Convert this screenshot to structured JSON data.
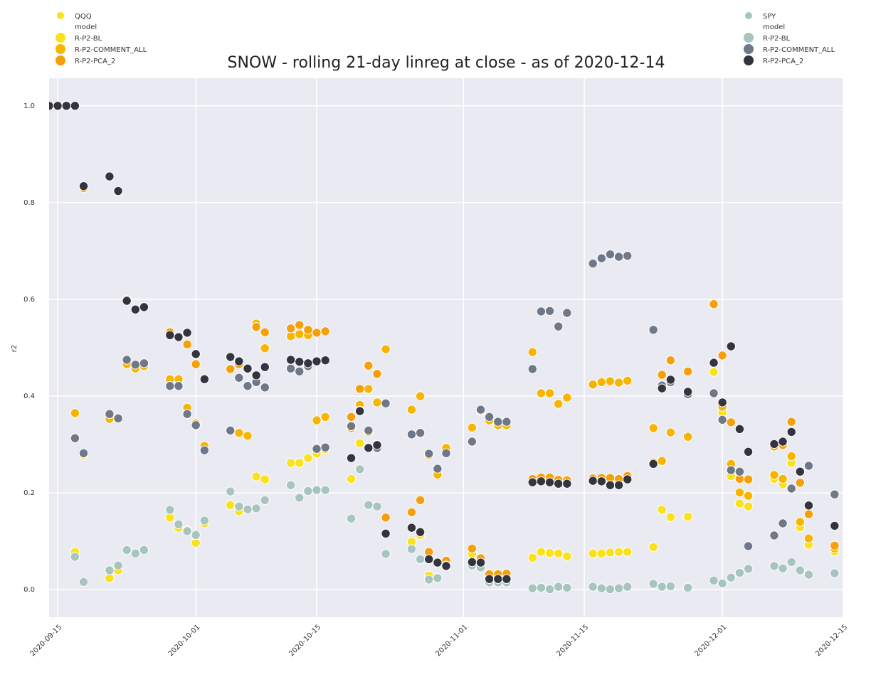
{
  "chart_data": {
    "type": "scatter",
    "title": "SNOW - rolling 21-day linreg at close - as of 2020-12-14",
    "ylabel": "r2",
    "grid": true,
    "x": [
      "2020-09-14",
      "2020-09-15",
      "2020-09-16",
      "2020-09-17",
      "2020-09-18",
      "2020-09-21",
      "2020-09-22",
      "2020-09-23",
      "2020-09-24",
      "2020-09-25",
      "2020-09-28",
      "2020-09-29",
      "2020-09-30",
      "2020-10-01",
      "2020-10-02",
      "2020-10-05",
      "2020-10-06",
      "2020-10-07",
      "2020-10-08",
      "2020-10-09",
      "2020-10-12",
      "2020-10-13",
      "2020-10-14",
      "2020-10-15",
      "2020-10-16",
      "2020-10-19",
      "2020-10-20",
      "2020-10-21",
      "2020-10-22",
      "2020-10-23",
      "2020-10-26",
      "2020-10-27",
      "2020-10-28",
      "2020-10-29",
      "2020-10-30",
      "2020-11-02",
      "2020-11-03",
      "2020-11-04",
      "2020-11-05",
      "2020-11-06",
      "2020-11-09",
      "2020-11-10",
      "2020-11-11",
      "2020-11-12",
      "2020-11-13",
      "2020-11-16",
      "2020-11-17",
      "2020-11-18",
      "2020-11-19",
      "2020-11-20",
      "2020-11-23",
      "2020-11-24",
      "2020-11-25",
      "2020-11-27",
      "2020-11-30",
      "2020-12-01",
      "2020-12-02",
      "2020-12-03",
      "2020-12-04",
      "2020-12-07",
      "2020-12-08",
      "2020-12-09",
      "2020-12-10",
      "2020-12-11",
      "2020-12-14"
    ],
    "xlim": [
      "2020-09-14",
      "2020-12-15"
    ],
    "xticks": [
      "2020-09-15",
      "2020-10-01",
      "2020-10-15",
      "2020-11-01",
      "2020-11-15",
      "2020-12-01",
      "2020-12-15"
    ],
    "ylim": [
      -0.057,
      1.057
    ],
    "yticks": [
      {
        "value": 0,
        "label": "0.0"
      },
      0.2,
      0.4,
      0.6,
      0.8,
      {
        "value": 1,
        "label": "1.0"
      }
    ],
    "groups": [
      {
        "name": "QQQ",
        "color": "#f9e21b",
        "legend_title": "model",
        "legend_corner": "upper left",
        "series": [
          {
            "name": "R-P2-BL",
            "color": "#f9e21b",
            "values": [
              1,
              1,
              1,
              0.078,
              0.279,
              0.024,
              0.04,
              0.466,
              0.457,
              0.462,
              0.149,
              0.128,
              0.123,
              0.097,
              0.137,
              0.175,
              0.162,
              0.166,
              0.234,
              0.228,
              0.262,
              0.262,
              0.272,
              0.281,
              0.29,
              0.229,
              0.303,
              0.325,
              0.3,
              0.385,
              0.099,
              0.113,
              0.029,
              0.024,
              0.052,
              0.074,
              0.05,
              0.02,
              0.02,
              0.02,
              0.066,
              0.078,
              0.076,
              0.075,
              0.069,
              0.075,
              0.075,
              0.077,
              0.078,
              0.078,
              0.088,
              0.165,
              0.15,
              0.151,
              0.45,
              0.366,
              0.235,
              0.178,
              0.172,
              0.229,
              0.218,
              0.262,
              0.129,
              0.093,
              0.079
            ]
          },
          {
            "name": "R-P2-COMMENT_ALL",
            "color": "#f7b500",
            "values": [
              1,
              1,
              1,
              0.365,
              0.83,
              0.353,
              0.354,
              0.466,
              0.457,
              0.462,
              0.435,
              0.435,
              0.376,
              0.344,
              0.297,
              0.329,
              0.324,
              0.318,
              0.55,
              0.499,
              0.524,
              0.528,
              0.526,
              0.35,
              0.357,
              0.334,
              0.382,
              0.415,
              0.387,
              0.497,
              0.372,
              0.4,
              0.278,
              0.238,
              0.293,
              0.335,
              0.37,
              0.35,
              0.34,
              0.34,
              0.491,
              0.406,
              0.406,
              0.384,
              0.397,
              0.424,
              0.429,
              0.431,
              0.428,
              0.432,
              0.334,
              0.266,
              0.325,
              0.316,
              0.47,
              0.378,
              0.26,
              0.201,
              0.194,
              0.237,
              0.229,
              0.276,
              0.14,
              0.106,
              0.085
            ]
          },
          {
            "name": "R-P2-PCA_2",
            "color": "#f59f0a",
            "values": [
              1,
              1,
              1,
              1,
              0.83,
              0.853,
              0.823,
              0.599,
              0.579,
              0.584,
              0.532,
              0.522,
              0.507,
              0.466,
              0.435,
              0.456,
              0.466,
              0.457,
              0.543,
              0.532,
              0.54,
              0.547,
              0.537,
              0.531,
              0.534,
              0.357,
              0.415,
              0.463,
              0.446,
              0.149,
              0.16,
              0.185,
              0.078,
              0.056,
              0.06,
              0.085,
              0.065,
              0.032,
              0.032,
              0.033,
              0.229,
              0.232,
              0.232,
              0.227,
              0.226,
              0.23,
              0.231,
              0.231,
              0.229,
              0.235,
              0.263,
              0.444,
              0.474,
              0.451,
              0.59,
              0.484,
              0.346,
              0.229,
              0.228,
              0.296,
              0.299,
              0.347,
              0.221,
              0.156,
              0.091
            ]
          }
        ]
      },
      {
        "name": "SPY",
        "color": "#a7c4bf",
        "legend_title": "model",
        "legend_corner": "upper right",
        "series": [
          {
            "name": "R-P2-BL",
            "color": "#a7c4bf",
            "values": [
              1,
              1,
              1,
              0.068,
              0.016,
              0.04,
              0.05,
              0.082,
              0.075,
              0.082,
              0.165,
              0.135,
              0.121,
              0.113,
              0.143,
              0.203,
              0.172,
              0.166,
              0.168,
              0.185,
              0.216,
              0.19,
              0.204,
              0.206,
              0.206,
              0.147,
              0.249,
              0.175,
              0.172,
              0.074,
              0.084,
              0.063,
              0.021,
              0.024,
              0.05,
              0.05,
              0.046,
              0.015,
              0.015,
              0.015,
              0.003,
              0.004,
              0.001,
              0.006,
              0.004,
              0.006,
              0.003,
              0.001,
              0.003,
              0.006,
              0.012,
              0.006,
              0.007,
              0.004,
              0.019,
              0.013,
              0.025,
              0.035,
              0.043,
              0.049,
              0.044,
              0.057,
              0.04,
              0.031,
              0.034
            ]
          },
          {
            "name": "R-P2-COMMENT_ALL",
            "color": "#6f7888",
            "values": [
              1,
              1,
              1,
              0.313,
              0.282,
              0.363,
              0.354,
              0.475,
              0.465,
              0.468,
              0.421,
              0.421,
              0.363,
              0.34,
              0.288,
              0.329,
              0.438,
              0.421,
              0.429,
              0.418,
              0.457,
              0.451,
              0.462,
              0.291,
              0.294,
              0.338,
              0.37,
              0.329,
              0.293,
              0.385,
              0.321,
              0.324,
              0.281,
              0.25,
              0.282,
              0.306,
              0.372,
              0.357,
              0.347,
              0.347,
              0.456,
              0.575,
              0.576,
              0.544,
              0.572,
              0.674,
              0.685,
              0.693,
              0.688,
              0.69,
              0.537,
              0.422,
              0.429,
              0.404,
              0.406,
              0.351,
              0.247,
              0.244,
              0.09,
              0.112,
              0.137,
              0.209,
              0.243,
              0.256,
              0.197
            ]
          },
          {
            "name": "R-P2-PCA_2",
            "color": "#34343f",
            "values": [
              1,
              1,
              1,
              1,
              0.834,
              0.854,
              0.824,
              0.597,
              0.579,
              0.584,
              0.526,
              0.522,
              0.531,
              0.487,
              0.435,
              0.481,
              0.472,
              0.457,
              0.443,
              0.46,
              0.475,
              0.471,
              0.468,
              0.472,
              0.474,
              0.272,
              0.369,
              0.293,
              0.299,
              0.116,
              0.128,
              0.119,
              0.063,
              0.056,
              0.049,
              0.057,
              0.056,
              0.022,
              0.022,
              0.022,
              0.222,
              0.224,
              0.222,
              0.219,
              0.219,
              0.225,
              0.224,
              0.216,
              0.216,
              0.228,
              0.26,
              0.416,
              0.434,
              0.409,
              0.469,
              0.387,
              0.503,
              0.332,
              0.285,
              0.301,
              0.306,
              0.326,
              0.244,
              0.174,
              0.132
            ]
          }
        ]
      }
    ]
  }
}
